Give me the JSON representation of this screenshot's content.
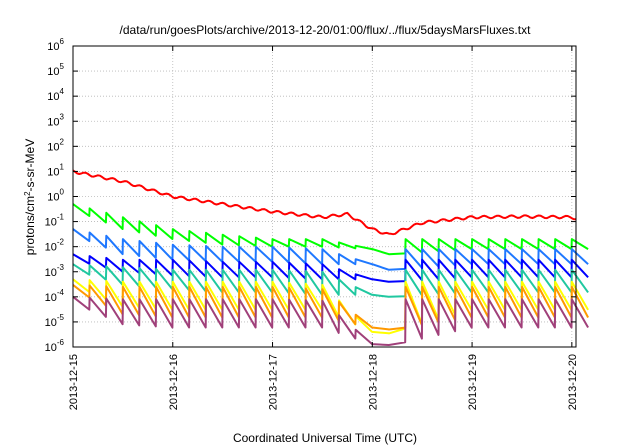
{
  "chart_data": {
    "type": "line",
    "title": "/data/run/goesPlots/archive/2013-12-20/01:00/flux/../flux/5daysMarsFluxes.txt",
    "xlabel": "Coordinated Universal Time (UTC)",
    "ylabel": "protons/cm²-s-sr-MeV",
    "ylabel_parts": {
      "before": "protons/cm",
      "sup": "2",
      "after": "-s-sr-MeV"
    },
    "yscale": "log",
    "ylim": [
      1e-06,
      1000000.0
    ],
    "ytick_labels": [
      {
        "base": "10",
        "exp": "-6",
        "value": 1e-06
      },
      {
        "base": "10",
        "exp": "-5",
        "value": 1e-05
      },
      {
        "base": "10",
        "exp": "-4",
        "value": 0.0001
      },
      {
        "base": "10",
        "exp": "-3",
        "value": 0.001
      },
      {
        "base": "10",
        "exp": "-2",
        "value": 0.01
      },
      {
        "base": "10",
        "exp": "-1",
        "value": 0.1
      },
      {
        "base": "10",
        "exp": "0",
        "value": 1
      },
      {
        "base": "10",
        "exp": "1",
        "value": 10
      },
      {
        "base": "10",
        "exp": "2",
        "value": 100
      },
      {
        "base": "10",
        "exp": "3",
        "value": 1000
      },
      {
        "base": "10",
        "exp": "4",
        "value": 10000
      },
      {
        "base": "10",
        "exp": "5",
        "value": 100000
      },
      {
        "base": "10",
        "exp": "6",
        "value": 1000000
      }
    ],
    "xlim": [
      "2013-12-15",
      "2013-12-20T01:00"
    ],
    "xticks": [
      "2013-12-15",
      "2013-12-16",
      "2013-12-17",
      "2013-12-18",
      "2013-12-19",
      "2013-12-20"
    ],
    "grid": true,
    "legend": "none",
    "sawtooth_period_hours": 4,
    "series": [
      {
        "color": "#ff0000",
        "shape": "smooth",
        "x": [
          "2013-12-15T00:00",
          "2013-12-15T12:00",
          "2013-12-16T00:00",
          "2013-12-16T12:00",
          "2013-12-17T00:00",
          "2013-12-17T12:00",
          "2013-12-17T18:00",
          "2013-12-18T00:00",
          "2013-12-18T04:00",
          "2013-12-18T12:00",
          "2013-12-19T00:00",
          "2013-12-19T12:00",
          "2013-12-20T00:00",
          "2013-12-20T01:00"
        ],
        "values": [
          10,
          4,
          1,
          0.5,
          0.25,
          0.15,
          0.2,
          0.05,
          0.03,
          0.09,
          0.15,
          0.16,
          0.15,
          0.13
        ]
      },
      {
        "color": "#00ff00",
        "shape": "sawtooth",
        "x": [
          "2013-12-15T00:00",
          "2013-12-15T12:00",
          "2013-12-16T00:00",
          "2013-12-16T12:00",
          "2013-12-17T00:00",
          "2013-12-17T12:00",
          "2013-12-18T00:00",
          "2013-12-18T04:00",
          "2013-12-18T05:00",
          "2013-12-19T00:00",
          "2013-12-20T01:00"
        ],
        "peaks": [
          0.5,
          0.15,
          0.05,
          0.03,
          0.02,
          0.02,
          0.008,
          0.005,
          0.02,
          0.02,
          0.02
        ],
        "troughs": [
          0.3,
          0.05,
          0.02,
          0.012,
          0.01,
          0.01,
          0.008,
          0.005,
          0.005,
          0.008,
          0.008
        ]
      },
      {
        "color": "#1f78ff",
        "shape": "sawtooth",
        "x": [
          "2013-12-15T00:00",
          "2013-12-15T12:00",
          "2013-12-16T00:00",
          "2013-12-16T12:00",
          "2013-12-17T00:00",
          "2013-12-17T12:00",
          "2013-12-18T00:00",
          "2013-12-18T04:00",
          "2013-12-18T05:00",
          "2013-12-19T00:00",
          "2013-12-20T01:00"
        ],
        "peaks": [
          0.05,
          0.02,
          0.012,
          0.01,
          0.01,
          0.008,
          0.002,
          0.0012,
          0.008,
          0.008,
          0.008
        ],
        "troughs": [
          0.03,
          0.005,
          0.003,
          0.0025,
          0.0025,
          0.002,
          0.002,
          0.0012,
          0.0012,
          0.002,
          0.002
        ]
      },
      {
        "color": "#0000ff",
        "shape": "sawtooth",
        "x": [
          "2013-12-15T00:00",
          "2013-12-15T12:00",
          "2013-12-16T00:00",
          "2013-12-16T12:00",
          "2013-12-17T00:00",
          "2013-12-17T12:00",
          "2013-12-18T00:00",
          "2013-12-18T04:00",
          "2013-12-18T05:00",
          "2013-12-19T00:00",
          "2013-12-20T01:00"
        ],
        "peaks": [
          0.005,
          0.003,
          0.003,
          0.0025,
          0.0025,
          0.002,
          0.0005,
          0.0004,
          0.003,
          0.003,
          0.003
        ],
        "troughs": [
          0.003,
          0.001,
          0.0007,
          0.0006,
          0.0006,
          0.0005,
          0.0005,
          0.0004,
          0.0004,
          0.0006,
          0.0006
        ]
      },
      {
        "color": "#20c8a0",
        "shape": "sawtooth",
        "x": [
          "2013-12-15T00:00",
          "2013-12-15T12:00",
          "2013-12-16T00:00",
          "2013-12-16T12:00",
          "2013-12-17T00:00",
          "2013-12-17T12:00",
          "2013-12-18T00:00",
          "2013-12-18T04:00",
          "2013-12-18T05:00",
          "2013-12-19T00:00",
          "2013-12-20T01:00"
        ],
        "peaks": [
          0.002,
          0.0015,
          0.0012,
          0.0012,
          0.0012,
          0.001,
          0.00012,
          0.0001,
          0.0012,
          0.0012,
          0.0012
        ],
        "troughs": [
          0.0012,
          0.0003,
          0.0002,
          0.00015,
          0.00015,
          0.00012,
          0.00012,
          0.0001,
          0.0001,
          0.00015,
          0.00015
        ]
      },
      {
        "color": "#ffff00",
        "shape": "sawtooth",
        "x": [
          "2013-12-15T00:00",
          "2013-12-15T12:00",
          "2013-12-16T00:00",
          "2013-12-16T12:00",
          "2013-12-17T00:00",
          "2013-12-17T12:00",
          "2013-12-18T00:00",
          "2013-12-18T04:00",
          "2013-12-18T05:00",
          "2013-12-19T00:00",
          "2013-12-20T01:00"
        ],
        "peaks": [
          0.0005,
          0.0004,
          0.0004,
          0.0004,
          0.0004,
          0.0003,
          4e-06,
          3.5e-06,
          0.0004,
          0.0004,
          0.0004
        ],
        "troughs": [
          0.0003,
          4e-05,
          3e-05,
          3e-05,
          3e-05,
          3e-05,
          4e-06,
          3.5e-06,
          4e-06,
          3e-05,
          3e-05
        ]
      },
      {
        "color": "#ff9900",
        "shape": "sawtooth",
        "x": [
          "2013-12-15T00:00",
          "2013-12-15T12:00",
          "2013-12-16T00:00",
          "2013-12-16T12:00",
          "2013-12-17T00:00",
          "2013-12-17T12:00",
          "2013-12-18T00:00",
          "2013-12-18T04:00",
          "2013-12-18T05:00",
          "2013-12-19T00:00",
          "2013-12-20T01:00"
        ],
        "peaks": [
          0.0003,
          0.00025,
          0.00025,
          0.00025,
          0.00025,
          0.0002,
          6e-06,
          5e-06,
          0.00025,
          0.00025,
          0.00025
        ],
        "troughs": [
          0.0002,
          2e-05,
          1.5e-05,
          1.5e-05,
          1.5e-05,
          1.5e-05,
          6e-06,
          5e-06,
          5e-06,
          1.5e-05,
          1.5e-05
        ]
      },
      {
        "color": "#a0407a",
        "shape": "sawtooth",
        "x": [
          "2013-12-15T00:00",
          "2013-12-15T12:00",
          "2013-12-16T00:00",
          "2013-12-16T12:00",
          "2013-12-17T00:00",
          "2013-12-17T12:00",
          "2013-12-18T00:00",
          "2013-12-18T04:00",
          "2013-12-18T05:00",
          "2013-12-19T00:00",
          "2013-12-20T01:00"
        ],
        "peaks": [
          0.0001,
          8e-05,
          8e-05,
          8e-05,
          8e-05,
          7e-05,
          1.3e-06,
          1.2e-06,
          8e-05,
          8e-05,
          8e-05
        ],
        "troughs": [
          6e-05,
          8e-06,
          6e-06,
          6e-06,
          6e-06,
          6e-06,
          1.3e-06,
          1.2e-06,
          1.2e-06,
          6e-06,
          6e-06
        ]
      }
    ]
  }
}
